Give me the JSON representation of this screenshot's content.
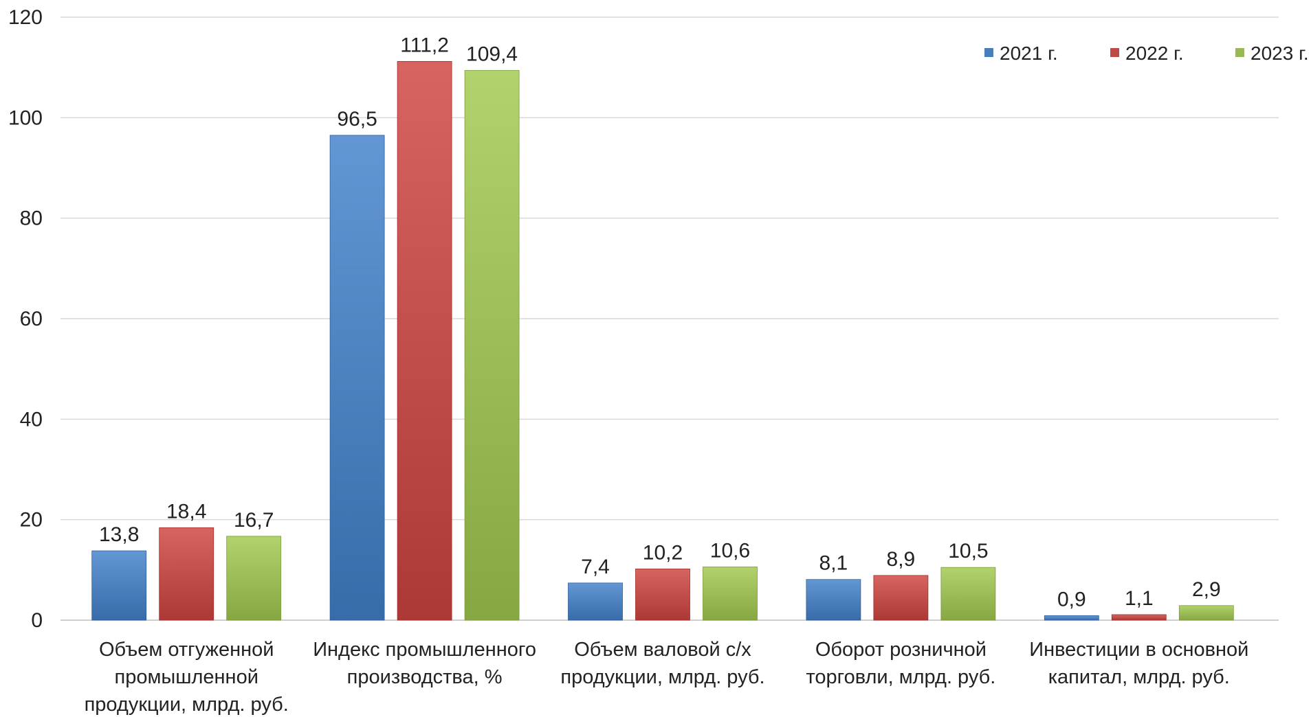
{
  "chart_data": {
    "type": "bar",
    "title": "",
    "xlabel": "",
    "ylabel": "",
    "ylim": [
      0,
      120
    ],
    "yticks": [
      0,
      20,
      40,
      60,
      80,
      100,
      120
    ],
    "grid": true,
    "legend_position": "top-right",
    "categories": [
      [
        "Объем отгуженной",
        "промышленной",
        "продукции, млрд. руб."
      ],
      [
        "Индекс промышленного",
        "производства, %"
      ],
      [
        "Объем валовой с/х",
        "продукции, млрд. руб."
      ],
      [
        "Оборот розничной",
        "торговли, млрд. руб."
      ],
      [
        "Инвестиции в основной",
        "капитал, млрд. руб."
      ]
    ],
    "series": [
      {
        "name": "2021 г.",
        "color": "#4a7ebb",
        "values": [
          13.8,
          96.5,
          7.4,
          8.1,
          0.9
        ],
        "labels": [
          "13,8",
          "96,5",
          "7,4",
          "8,1",
          "0,9"
        ]
      },
      {
        "name": "2022 г.",
        "color": "#be4b48",
        "values": [
          18.4,
          111.2,
          10.2,
          8.9,
          1.1
        ],
        "labels": [
          "18,4",
          "111,2",
          "10,2",
          "8,9",
          "1,1"
        ]
      },
      {
        "name": "2023 г.",
        "color": "#98b954",
        "values": [
          16.7,
          109.4,
          10.6,
          10.5,
          2.9
        ],
        "labels": [
          "16,7",
          "109,4",
          "10,6",
          "10,5",
          "2,9"
        ]
      }
    ]
  }
}
